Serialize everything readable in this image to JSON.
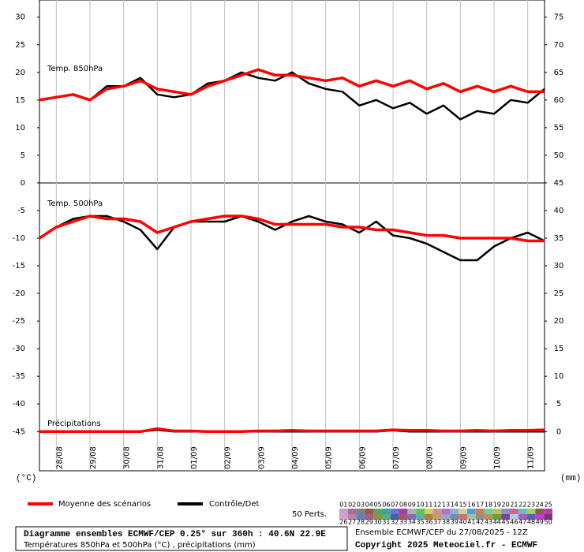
{
  "chart_data": {
    "type": "line",
    "title": "Diagramme ensembles ECMWF/CEP 0.25° sur 360h : 40.6N 22.9E",
    "subtitle": "Températures 850hPa et 500hPa (°C) , précipitations (mm)",
    "run_label": "Ensemble ECMWF/CEP du 27/08/2025 - 12Z",
    "copyright": "Copyright 2025 Meteociel.fr - ECMWF",
    "y_label": "(°C)",
    "y2_label": "(mm)",
    "annotations": [
      "Temp. 850hPa",
      "Temp. 500hPa",
      "Précipitations"
    ],
    "categories": [
      null,
      "28/08",
      null,
      "29/08",
      null,
      "30/08",
      null,
      "31/08",
      null,
      "01/09",
      null,
      "02/09",
      null,
      "03/09",
      null,
      "04/09",
      null,
      "05/09",
      null,
      "06/09",
      null,
      "07/09",
      null,
      "08/09",
      null,
      "09/09",
      null,
      "10/09",
      null,
      "11/09",
      null
    ],
    "ylim": [
      -52.1,
      33.1
    ],
    "yticks": [
      30,
      25,
      20,
      15,
      10,
      5,
      0,
      -5,
      -10,
      -15,
      -20,
      -25,
      -30,
      -35,
      -40,
      -45
    ],
    "y2lim": [
      -7.1,
      78.1
    ],
    "y2ticks": [
      75,
      70,
      65,
      60,
      55,
      50,
      45,
      40,
      35,
      30,
      25,
      20,
      15,
      10,
      5,
      0
    ],
    "grid": true,
    "series": [
      {
        "name": "Moyenne des scénarios",
        "color": "#ff0000",
        "values": [
          15,
          15.5,
          16,
          15,
          17,
          17.5,
          18.5,
          17,
          16.5,
          16,
          17.5,
          18.5,
          19.5,
          20.5,
          19.5,
          19.5,
          19,
          18.5,
          19,
          17.5,
          18.5,
          17.5,
          18.5,
          17,
          18,
          16.5,
          17.5,
          16.5,
          17.5,
          16.5,
          16.5
        ]
      },
      {
        "name": "Contrôle/Det",
        "color": "#000000",
        "values": [
          15,
          15.5,
          16,
          15,
          17.5,
          17.5,
          19,
          16,
          15.5,
          16,
          18,
          18.5,
          20,
          19,
          18.5,
          20,
          18,
          17,
          16.5,
          14,
          15,
          13.5,
          14.5,
          12.5,
          14,
          11.5,
          13,
          12.5,
          15,
          14.5,
          17
        ]
      },
      {
        "name": "Moyenne des scénarios",
        "color": "#ff0000",
        "values": [
          -10,
          -8,
          -7,
          -6,
          -6.5,
          -6.5,
          -7,
          -9,
          -8,
          -7,
          -6.5,
          -6,
          -6,
          -6.5,
          -7.5,
          -7.5,
          -7.5,
          -7.5,
          -8,
          -8,
          -8.5,
          -8.5,
          -9,
          -9.5,
          -9.5,
          -10,
          -10,
          -10,
          -10,
          -10.5,
          -10.5
        ]
      },
      {
        "name": "Contrôle/Det",
        "color": "#000000",
        "values": [
          -10,
          -8,
          -6.5,
          -6,
          -6,
          -7,
          -8.5,
          -12,
          -8,
          -7,
          -7,
          -7,
          -6,
          -7,
          -8.5,
          -7,
          -6,
          -7,
          -7.5,
          -9,
          -7,
          -9.5,
          -10,
          -11,
          -12.5,
          -14,
          -14,
          -11.5,
          -10,
          -9,
          -10.5
        ]
      },
      {
        "name": "Moyenne des scénarios",
        "color": "#ff0000",
        "axis": "y2",
        "values": [
          0,
          0,
          0,
          0,
          0,
          0,
          0,
          0.5,
          0.1,
          0.1,
          0,
          0,
          0,
          0.1,
          0.1,
          0.2,
          0.1,
          0.1,
          0.1,
          0.1,
          0.1,
          0.3,
          0.2,
          0.2,
          0.1,
          0.1,
          0.2,
          0.1,
          0.2,
          0.2,
          0.3
        ]
      },
      {
        "name": "Contrôle/Det",
        "color": "#000000",
        "axis": "y2",
        "values": [
          0,
          0,
          0,
          0,
          0,
          0,
          0,
          0.3,
          0,
          0,
          0,
          0,
          0,
          0,
          0,
          0,
          0,
          0,
          0,
          0,
          0,
          0.2,
          0,
          0,
          0,
          0,
          0,
          0,
          0,
          0,
          0
        ]
      }
    ],
    "perturbations": {
      "label": "50 Perts.",
      "members": [
        "01",
        "02",
        "03",
        "04",
        "05",
        "06",
        "07",
        "08",
        "09",
        "10",
        "11",
        "12",
        "13",
        "14",
        "15",
        "16",
        "17",
        "18",
        "19",
        "20",
        "21",
        "22",
        "23",
        "24",
        "25",
        "26",
        "27",
        "28",
        "29",
        "30",
        "31",
        "32",
        "33",
        "34",
        "35",
        "36",
        "37",
        "38",
        "39",
        "40",
        "41",
        "42",
        "43",
        "44",
        "45",
        "46",
        "47",
        "48",
        "49",
        "50"
      ],
      "colors": [
        "#c8a0c8",
        "#a070a0",
        "#808080",
        "#a05050",
        "#60a060",
        "#40a0a0",
        "#7070d0",
        "#a040a0",
        "#b0b0b0",
        "#60c060",
        "#d0d060",
        "#d09090",
        "#b070d0",
        "#90b0d0",
        "#d0d0a0",
        "#50a0d0",
        "#d08050",
        "#70d0a0",
        "#c0c060",
        "#9090c0",
        "#d060a0",
        "#60c0c0",
        "#a0d060",
        "#806040",
        "#b040b0",
        "#d0a0d0",
        "#c080a0",
        "#6080c0",
        "#a06080",
        "#909040",
        "#50b080",
        "#4060a0",
        "#b05070",
        "#8070b0",
        "#60b0b0",
        "#b08040",
        "#c0a060",
        "#a0a0d0",
        "#7090a0",
        "#d07070",
        "#a0c0a0",
        "#909090",
        "#c09060",
        "#60a040",
        "#8040a0",
        "#b0d0d0",
        "#a060c0",
        "#6060a0",
        "#c040c0",
        "#803080"
      ]
    }
  }
}
